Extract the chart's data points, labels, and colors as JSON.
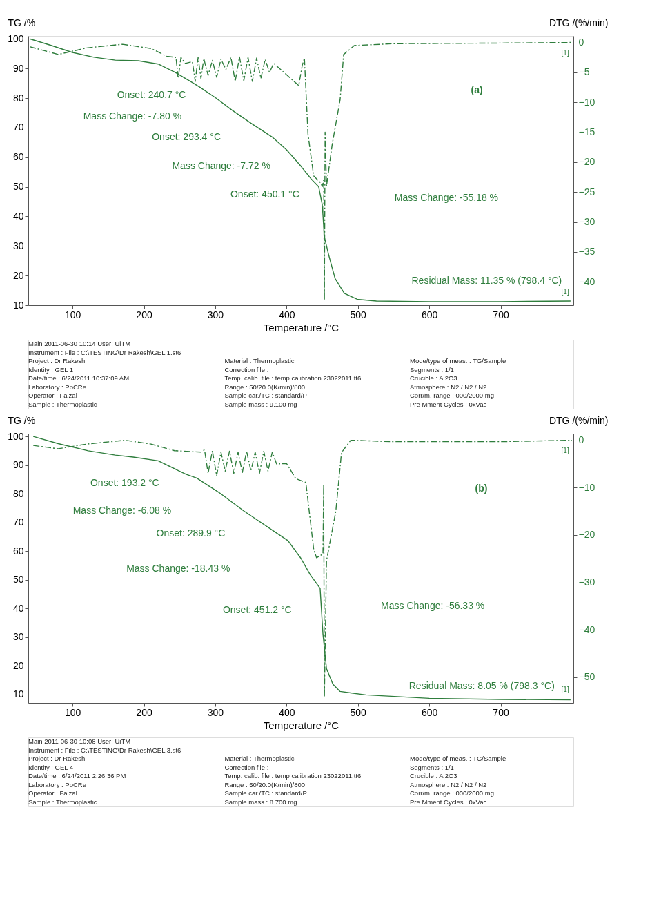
{
  "chart_data": [
    {
      "type": "line",
      "xlabel": "Temperature /°C",
      "ylabel": "TG /%",
      "y2label": "DTG /(%/min)",
      "xlim": [
        38,
        802
      ],
      "xticks": [
        100,
        200,
        300,
        400,
        500,
        600,
        700
      ],
      "ylim": [
        10,
        101
      ],
      "yticks": [
        10,
        20,
        30,
        40,
        50,
        60,
        70,
        80,
        90,
        100
      ],
      "y2lim": [
        -43.9,
        1.1
      ],
      "y2ticks": [
        0,
        -5,
        -10,
        -15,
        -20,
        -25,
        -30,
        -35,
        -40
      ],
      "grid": false,
      "series": [
        {
          "color": "#2e7d3c",
          "line_style": "solid",
          "x": [
            40,
            70,
            100,
            130,
            160,
            192,
            220,
            243,
            268,
            279,
            301,
            323,
            350,
            380,
            400,
            420,
            435,
            445,
            450,
            453,
            459,
            468,
            481,
            499,
            526,
            600,
            700,
            798
          ],
          "values": [
            100,
            97.8,
            95.4,
            93.8,
            92.8,
            92.6,
            91.5,
            88.8,
            85.2,
            83.6,
            80,
            76,
            71.5,
            66.8,
            62.5,
            57,
            52.5,
            50,
            44,
            33,
            27,
            19,
            14,
            12,
            11.4,
            11.2,
            11.2,
            11.4
          ]
        },
        {
          "color": "#2e7d3c",
          "line_style": "dashed",
          "axis": "y2",
          "x": [
            40,
            80,
            120,
            170,
            210,
            232,
            245,
            248,
            252,
            258,
            268,
            272,
            276,
            280,
            284,
            290,
            296,
            302,
            308,
            315,
            322,
            328,
            334,
            340,
            346,
            352,
            358,
            364,
            370,
            376,
            382,
            385,
            417,
            422,
            425,
            430,
            438,
            448,
            450,
            452,
            453,
            454,
            456,
            464,
            475,
            480,
            495,
            550,
            700,
            800
          ],
          "values": [
            -0.7,
            -2.0,
            -0.9,
            -0.3,
            -1.0,
            -2.3,
            -2.5,
            -6,
            -2.5,
            -3.5,
            -3.2,
            -6.5,
            -2.5,
            -6,
            -2.7,
            -5.5,
            -3,
            -5.8,
            -2.8,
            -4.5,
            -2.5,
            -6.5,
            -2.4,
            -6.4,
            -2.5,
            -6.5,
            -2.6,
            -6,
            -2.8,
            -5,
            -3.5,
            -3.8,
            -7.2,
            -3.8,
            -2.6,
            -15.3,
            -22.3,
            -23.5,
            -24.1,
            -23,
            -43,
            -15,
            -24,
            -17,
            -9.6,
            -2,
            -0.5,
            -0.2,
            -0.1,
            0
          ]
        }
      ],
      "annotations": [
        "Onset: 240.7 °C",
        "Mass Change: -7.80 %",
        "Onset: 293.4 °C",
        "Mass Change: -7.72 %",
        "Onset: 450.1 °C",
        "Mass Change: -55.18 %",
        "Residual Mass: 11.35 % (798.4 °C)",
        "(a)",
        "[1]",
        "[1]",
        "Main   2011-06-30 10:14   User: UiTM",
        "Instrument :   File :   C:\\TESTING\\Dr Rakesh\\GEL 1.st6",
        "Project :   Dr Rakesh",
        "Identity :   GEL 1",
        "Date/time :   6/24/2011 10:37:09 AM",
        "Laboratory :   PoCRe",
        "Operator :   Faizal",
        "Sample :   Thermoplastic",
        "Material :   Thermoplastic",
        "Correction file :",
        "Temp. calib. file :   temp calibration 23022011.tt6",
        "Range :   50/20.0(K/min)/800",
        "Sample car./TC :   standard/P",
        "Sample mass :   9.100 mg",
        "Mode/type of meas. :   TG/Sample",
        "Segments :   1/1",
        "Crucible :   Al2O3",
        "Atmosphere :   N2 / N2 / N2",
        "Corr/m. range :   000/2000 mg",
        "Pre Mment Cycles :   0xVac"
      ]
    },
    {
      "type": "line",
      "xlabel": "Temperature /°C",
      "ylabel": "TG /%",
      "y2label": "DTG /(%/min)",
      "xlim": [
        38,
        802
      ],
      "xticks": [
        100,
        200,
        300,
        400,
        500,
        600,
        700
      ],
      "ylim": [
        7,
        101
      ],
      "yticks": [
        10,
        20,
        30,
        40,
        50,
        60,
        70,
        80,
        90,
        100
      ],
      "y2lim": [
        -55.4,
        1.4
      ],
      "y2ticks": [
        0,
        -10,
        -20,
        -30,
        -40,
        -50
      ],
      "grid": false,
      "series": [
        {
          "color": "#2e7d3c",
          "line_style": "solid",
          "x": [
            45,
            80,
            122,
            160,
            185,
            220,
            259,
            274,
            305,
            340,
            380,
            402,
            420,
            433,
            447,
            451,
            456,
            465,
            475,
            511,
            600,
            700,
            798
          ],
          "values": [
            100,
            97.5,
            95,
            93.5,
            92.8,
            91.5,
            86.8,
            85.5,
            80.5,
            74,
            67.3,
            63.6,
            57.5,
            51.8,
            47,
            31,
            18.9,
            13.5,
            11,
            9.8,
            8.6,
            8.2,
            8.1
          ]
        },
        {
          "color": "#2e7d3c",
          "line_style": "dashed",
          "axis": "y2",
          "x": [
            45,
            80,
            120,
            174,
            210,
            243,
            280,
            285,
            290,
            296,
            302,
            308,
            314,
            320,
            326,
            332,
            338,
            344,
            350,
            356,
            362,
            368,
            374,
            380,
            386,
            400,
            413,
            427,
            438,
            442,
            451,
            452,
            453,
            456,
            469,
            477,
            490,
            550,
            700,
            800
          ],
          "values": [
            -1.1,
            -1.8,
            -0.8,
            0,
            -0.8,
            -2.2,
            -2.5,
            -2,
            -7,
            -2.2,
            -7.5,
            -2.5,
            -6.5,
            -2.3,
            -7,
            -2.5,
            -6.8,
            -2.3,
            -6.5,
            -2.5,
            -7,
            -2.3,
            -6.5,
            -2.5,
            -5,
            -4.9,
            -8.1,
            -8.9,
            -23,
            -24.8,
            -24,
            -9.3,
            -54.1,
            -25.4,
            -15,
            -2.6,
            0,
            -0.3,
            -0.3,
            0
          ]
        }
      ],
      "annotations": [
        "Onset: 193.2 °C",
        "Mass Change: -6.08 %",
        "Onset: 289.9 °C",
        "Mass Change: -18.43 %",
        "Onset: 451.2 °C",
        "Mass Change: -56.33 %",
        "Residual Mass: 8.05 % (798.3 °C)",
        "(b)",
        "[1]",
        "[1]",
        "Main   2011-06-30 10:08   User: UiTM",
        "Instrument :   File :   C:\\TESTING\\Dr Rakesh\\GEL 3.st6",
        "Project :   Dr Rakesh",
        "Identity :   GEL 4",
        "Date/time :   6/24/2011 2:26:36 PM",
        "Laboratory :   PoCRe",
        "Operator :   Faizal",
        "Sample :   Thermoplastic",
        "Material :   Thermoplastic",
        "Correction file :",
        "Temp. calib. file :   temp calibration 23022011.tt6",
        "Range :   50/20.0(K/min)/800",
        "Sample car./TC :   standard/P",
        "Sample mass :   8.700 mg",
        "Mode/type of meas. :   TG/Sample",
        "Segments :   1/1",
        "Crucible :   Al2O3",
        "Atmosphere :   N2 / N2 / N2",
        "Corr/m. range :   000/2000 mg",
        "Pre Mment Cycles :   0xVac"
      ]
    }
  ]
}
